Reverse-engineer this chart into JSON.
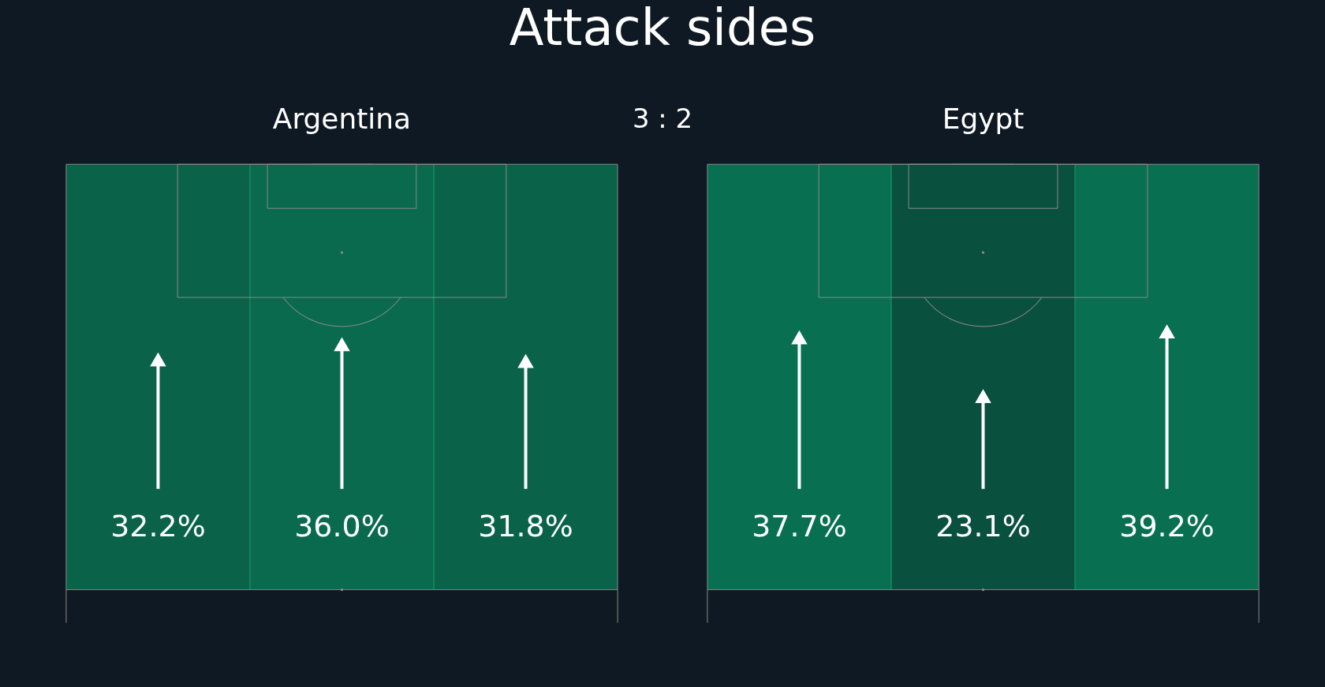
{
  "chart_data": [
    {
      "type": "other",
      "title": "Argentina",
      "categories": [
        null,
        null,
        null
      ],
      "values": [
        32.2,
        36.0,
        31.8
      ],
      "color": "#ffffff",
      "value_labels": [
        "32.2%",
        "36.0%",
        "31.8%"
      ],
      "annotations": [
        "Attack sides",
        "3 : 2"
      ]
    },
    {
      "type": "other",
      "title": "Egypt",
      "categories": [
        null,
        null,
        null
      ],
      "values": [
        37.7,
        23.1,
        39.2
      ],
      "color": "#ffffff",
      "value_labels": [
        "37.7%",
        "23.1%",
        "39.2%"
      ]
    }
  ]
}
